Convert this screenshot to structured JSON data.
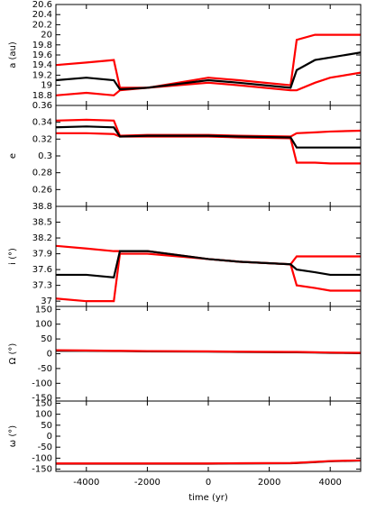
{
  "chart_data": [
    {
      "type": "line",
      "ylabel": "a (au)",
      "x": [
        -5000,
        -4000,
        -3100,
        -2900,
        -2000,
        0,
        1000,
        2700,
        2900,
        3500,
        4000,
        5000
      ],
      "xlim": [
        -5000,
        5000
      ],
      "xticks": [
        -4000,
        -2000,
        0,
        2000,
        4000
      ],
      "ylim": [
        18.6,
        20.6
      ],
      "yticks": [
        18.8,
        19,
        19.2,
        19.4,
        19.6,
        19.8,
        20,
        20.2,
        20.4,
        20.6
      ],
      "series": [
        {
          "color": "#ff0000",
          "values": [
            19.4,
            19.45,
            19.5,
            18.95,
            18.95,
            19.15,
            19.1,
            19.0,
            19.9,
            20.0,
            20.0,
            20.0
          ]
        },
        {
          "color": "#ff0000",
          "values": [
            18.8,
            18.85,
            18.8,
            18.9,
            18.95,
            19.05,
            19.0,
            18.9,
            18.9,
            19.05,
            19.15,
            19.25
          ]
        },
        {
          "color": "#000000",
          "values": [
            19.1,
            19.15,
            19.1,
            18.92,
            18.95,
            19.1,
            19.05,
            18.95,
            19.3,
            19.5,
            19.55,
            19.65
          ]
        }
      ]
    },
    {
      "type": "line",
      "ylabel": "e",
      "x": [
        -5000,
        -4000,
        -3100,
        -2900,
        -2000,
        0,
        1000,
        2700,
        2900,
        3500,
        4000,
        5000
      ],
      "xlim": [
        -5000,
        5000
      ],
      "xticks": [
        -4000,
        -2000,
        0,
        2000,
        4000
      ],
      "ylim": [
        0.24,
        0.36
      ],
      "yticks": [
        0.26,
        0.28,
        0.3,
        0.32,
        0.34,
        0.36
      ],
      "series": [
        {
          "color": "#ff0000",
          "values": [
            0.342,
            0.343,
            0.342,
            0.324,
            0.325,
            0.325,
            0.324,
            0.323,
            0.327,
            0.328,
            0.329,
            0.33
          ]
        },
        {
          "color": "#ff0000",
          "values": [
            0.327,
            0.327,
            0.326,
            0.323,
            0.323,
            0.323,
            0.322,
            0.321,
            0.292,
            0.292,
            0.291,
            0.291
          ]
        },
        {
          "color": "#000000",
          "values": [
            0.334,
            0.335,
            0.334,
            0.323,
            0.324,
            0.324,
            0.323,
            0.322,
            0.31,
            0.31,
            0.31,
            0.31
          ]
        }
      ]
    },
    {
      "type": "line",
      "ylabel": "i (°)",
      "x": [
        -5000,
        -4000,
        -3100,
        -2900,
        -2000,
        0,
        1000,
        2700,
        2900,
        3500,
        4000,
        5000
      ],
      "xlim": [
        -5000,
        5000
      ],
      "xticks": [
        -4000,
        -2000,
        0,
        2000,
        4000
      ],
      "ylim": [
        36.9,
        38.8
      ],
      "yticks": [
        37,
        37.3,
        37.6,
        37.9,
        38.2,
        38.5,
        38.8
      ],
      "series": [
        {
          "color": "#ff0000",
          "values": [
            38.05,
            38.0,
            37.95,
            37.95,
            37.95,
            37.8,
            37.75,
            37.7,
            37.85,
            37.85,
            37.85,
            37.85
          ]
        },
        {
          "color": "#ff0000",
          "values": [
            37.05,
            37.0,
            37.0,
            37.9,
            37.9,
            37.8,
            37.75,
            37.7,
            37.3,
            37.25,
            37.2,
            37.2
          ]
        },
        {
          "color": "#000000",
          "values": [
            37.5,
            37.5,
            37.45,
            37.95,
            37.95,
            37.8,
            37.75,
            37.7,
            37.6,
            37.55,
            37.5,
            37.5
          ]
        }
      ]
    },
    {
      "type": "line",
      "ylabel": "Ω (°)",
      "x": [
        -5000,
        -4000,
        -3100,
        -2900,
        -2000,
        0,
        1000,
        2700,
        2900,
        3500,
        4000,
        5000
      ],
      "xlim": [
        -5000,
        5000
      ],
      "xticks": [
        -4000,
        -2000,
        0,
        2000,
        4000
      ],
      "ylim": [
        -160,
        160
      ],
      "yticks": [
        -150,
        -100,
        -50,
        0,
        50,
        100,
        150
      ],
      "series": [
        {
          "color": "#000000",
          "values": [
            10,
            10,
            9,
            9,
            8,
            7,
            6,
            5,
            5,
            4,
            3,
            2
          ]
        },
        {
          "color": "#ff0000",
          "values": [
            12,
            11,
            10,
            10,
            9,
            8,
            7,
            6,
            6,
            5,
            4,
            3
          ]
        }
      ]
    },
    {
      "type": "line",
      "ylabel": "ω (°)",
      "xlabel": "time (yr)",
      "x": [
        -5000,
        -4000,
        -3100,
        -2900,
        -2000,
        0,
        1000,
        2700,
        2900,
        3500,
        4000,
        5000
      ],
      "xlim": [
        -5000,
        5000
      ],
      "xticks": [
        -4000,
        -2000,
        0,
        2000,
        4000
      ],
      "ylim": [
        -160,
        160
      ],
      "yticks": [
        -150,
        -100,
        -50,
        0,
        50,
        100,
        150
      ],
      "series": [
        {
          "color": "#000000",
          "values": [
            -125,
            -125,
            -125,
            -125,
            -125,
            -125,
            -124,
            -123,
            -122,
            -118,
            -114,
            -111
          ]
        },
        {
          "color": "#ff0000",
          "values": [
            -124,
            -124,
            -124,
            -124,
            -124,
            -124,
            -123,
            -122,
            -121,
            -117,
            -113,
            -110
          ]
        }
      ]
    }
  ]
}
